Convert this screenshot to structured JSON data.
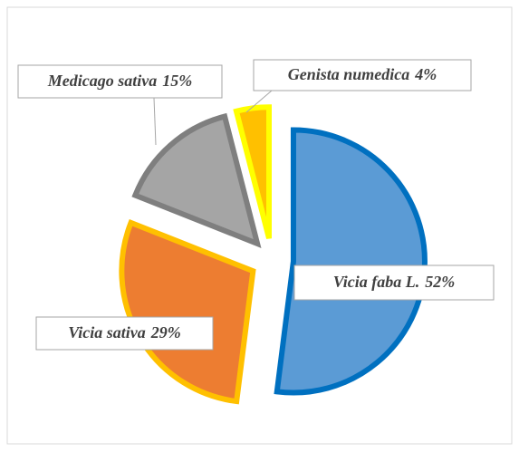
{
  "chart_data": {
    "type": "pie",
    "categories": [
      "Vicia faba L.",
      "Vicia sativa",
      "Medicago sativa",
      "Genista numedica"
    ],
    "values": [
      52,
      29,
      15,
      4
    ],
    "value_labels": [
      "52%",
      "29%",
      "15%",
      "4%"
    ],
    "colors": [
      "#5b9bd5",
      "#ed7d31",
      "#a5a5a5",
      "#ffc000"
    ],
    "edge_colors": [
      "#0070c0",
      "#ffc000",
      "#7f7f7f",
      "#ffff00"
    ]
  }
}
